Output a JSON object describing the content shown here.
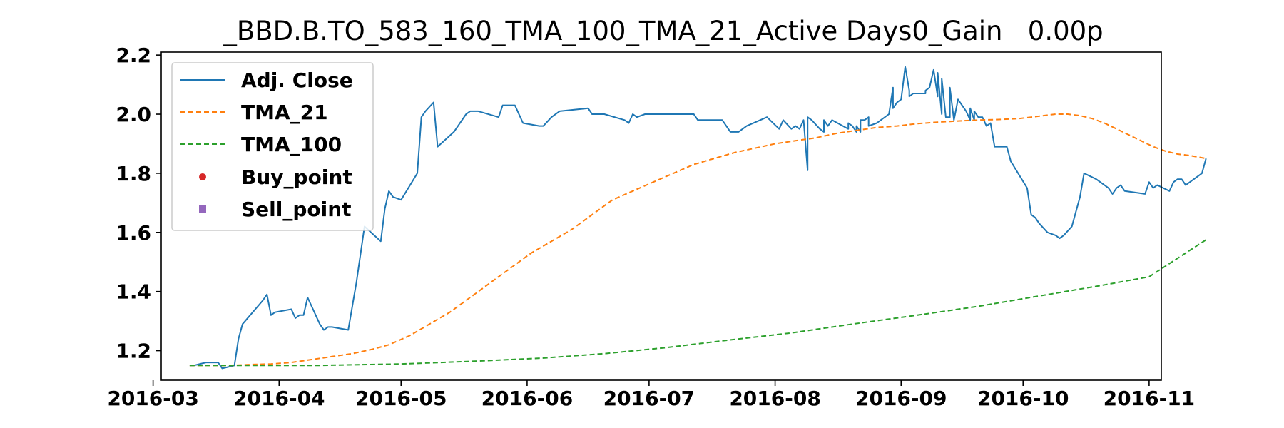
{
  "chart_data": {
    "type": "line",
    "title": "_BBD.B.TO_583_160_TMA_100_TMA_21_Active Days0_Gain   0.00p",
    "xlabel": "",
    "ylabel": "",
    "xlim": [
      "2016-03-03",
      "2016-11-04"
    ],
    "ylim": [
      1.1,
      2.21
    ],
    "grid": false,
    "legend_position": "upper-left",
    "x_ticks": [
      "2016-03",
      "2016-04",
      "2016-05",
      "2016-06",
      "2016-07",
      "2016-08",
      "2016-09",
      "2016-10",
      "2016-11"
    ],
    "y_ticks": [
      "1.2",
      "1.4",
      "1.6",
      "1.8",
      "2.0",
      "2.2"
    ],
    "series": [
      {
        "name": "Adj. Close",
        "style": "solid",
        "color": "#1f77b4",
        "points": [
          [
            "2016-03-10",
            1.15
          ],
          [
            "2016-03-11",
            1.15
          ],
          [
            "2016-03-14",
            1.16
          ],
          [
            "2016-03-15",
            1.16
          ],
          [
            "2016-03-16",
            1.16
          ],
          [
            "2016-03-17",
            1.16
          ],
          [
            "2016-03-18",
            1.14
          ],
          [
            "2016-03-21",
            1.15
          ],
          [
            "2016-03-22",
            1.24
          ],
          [
            "2016-03-23",
            1.29
          ],
          [
            "2016-03-28",
            1.37
          ],
          [
            "2016-03-29",
            1.39
          ],
          [
            "2016-03-30",
            1.32
          ],
          [
            "2016-03-31",
            1.33
          ],
          [
            "2016-04-04",
            1.34
          ],
          [
            "2016-04-05",
            1.31
          ],
          [
            "2016-04-06",
            1.32
          ],
          [
            "2016-04-07",
            1.32
          ],
          [
            "2016-04-08",
            1.38
          ],
          [
            "2016-04-11",
            1.29
          ],
          [
            "2016-04-12",
            1.27
          ],
          [
            "2016-04-13",
            1.28
          ],
          [
            "2016-04-14",
            1.28
          ],
          [
            "2016-04-18",
            1.27
          ],
          [
            "2016-04-20",
            1.43
          ],
          [
            "2016-04-22",
            1.62
          ],
          [
            "2016-04-26",
            1.57
          ],
          [
            "2016-04-27",
            1.68
          ],
          [
            "2016-04-28",
            1.74
          ],
          [
            "2016-04-29",
            1.72
          ],
          [
            "2016-05-01",
            1.71
          ],
          [
            "2016-05-05",
            1.8
          ],
          [
            "2016-05-06",
            1.99
          ],
          [
            "2016-05-07",
            2.01
          ],
          [
            "2016-05-09",
            2.04
          ],
          [
            "2016-05-10",
            1.89
          ],
          [
            "2016-05-14",
            1.94
          ],
          [
            "2016-05-17",
            2.0
          ],
          [
            "2016-05-18",
            2.01
          ],
          [
            "2016-05-20",
            2.01
          ],
          [
            "2016-05-25",
            1.99
          ],
          [
            "2016-05-26",
            2.03
          ],
          [
            "2016-05-29",
            2.03
          ],
          [
            "2016-05-31",
            1.97
          ],
          [
            "2016-06-04",
            1.96
          ],
          [
            "2016-06-05",
            1.96
          ],
          [
            "2016-06-07",
            1.99
          ],
          [
            "2016-06-09",
            2.01
          ],
          [
            "2016-06-16",
            2.02
          ],
          [
            "2016-06-17",
            2.0
          ],
          [
            "2016-06-20",
            2.0
          ],
          [
            "2016-06-25",
            1.98
          ],
          [
            "2016-06-26",
            1.97
          ],
          [
            "2016-06-27",
            2.0
          ],
          [
            "2016-06-28",
            1.99
          ],
          [
            "2016-06-30",
            2.0
          ],
          [
            "2016-07-12",
            2.0
          ],
          [
            "2016-07-13",
            1.98
          ],
          [
            "2016-07-19",
            1.98
          ],
          [
            "2016-07-21",
            1.94
          ],
          [
            "2016-07-23",
            1.94
          ],
          [
            "2016-07-25",
            1.96
          ],
          [
            "2016-07-30",
            1.99
          ],
          [
            "2016-08-02",
            1.95
          ],
          [
            "2016-08-03",
            1.98
          ],
          [
            "2016-08-05",
            1.95
          ],
          [
            "2016-08-09",
            1.81
          ],
          [
            "2016-08-12",
            1.95
          ],
          [
            "2016-08-13",
            1.94
          ],
          [
            "2016-08-19",
            1.95
          ],
          [
            "2016-08-21",
            1.94
          ],
          [
            "2016-08-22",
            1.94
          ],
          [
            "2016-08-23",
            1.98
          ],
          [
            "2016-08-24",
            1.99
          ],
          [
            "2016-08-30",
            2.09
          ],
          [
            "2016-09-02",
            2.16
          ],
          [
            "2016-09-03",
            2.08
          ],
          [
            "2016-09-04",
            2.07
          ],
          [
            "2016-09-07",
            2.07
          ],
          [
            "2016-09-10",
            2.06
          ],
          [
            "2016-09-11",
            2.0
          ],
          [
            "2016-09-12",
            1.99
          ],
          [
            "2016-09-13",
            1.99
          ],
          [
            "2016-09-14",
            1.98
          ],
          [
            "2016-09-18",
            1.98
          ],
          [
            "2016-09-19",
            1.98
          ],
          [
            "2016-09-20",
            1.99
          ],
          [
            "2016-09-21",
            1.99
          ],
          [
            "2016-09-22",
            1.96
          ],
          [
            "2016-08-06",
            1.96
          ],
          [
            "2016-08-07",
            1.95
          ],
          [
            "2016-08-08",
            1.98
          ],
          [
            "2016-08-09",
            1.99
          ],
          [
            "2016-08-10",
            1.98
          ],
          [
            "2016-08-13",
            1.98
          ],
          [
            "2016-08-14",
            1.96
          ],
          [
            "2016-08-15",
            1.98
          ],
          [
            "2016-08-19",
            1.97
          ],
          [
            "2016-08-20",
            1.96
          ],
          [
            "2016-08-21",
            1.96
          ],
          [
            "2016-08-22",
            1.98
          ],
          [
            "2016-08-24",
            1.96
          ],
          [
            "2016-08-26",
            1.97
          ],
          [
            "2016-08-27",
            1.98
          ],
          [
            "2016-08-29",
            2.0
          ],
          [
            "2016-08-30",
            2.02
          ],
          [
            "2016-08-31",
            2.04
          ],
          [
            "2016-09-01",
            2.05
          ],
          [
            "2016-09-03",
            2.06
          ],
          [
            "2016-09-06",
            2.07
          ],
          [
            "2016-09-07",
            2.08
          ],
          [
            "2016-09-08",
            2.09
          ],
          [
            "2016-09-09",
            2.15
          ],
          [
            "2016-09-10",
            2.14
          ],
          [
            "2016-09-11",
            2.12
          ],
          [
            "2016-09-13",
            2.09
          ],
          [
            "2016-09-15",
            2.05
          ],
          [
            "2016-09-17",
            2.01
          ],
          [
            "2016-09-18",
            2.02
          ],
          [
            "2016-09-19",
            2.01
          ],
          [
            "2016-09-21",
            1.99
          ],
          [
            "2016-09-23",
            1.97
          ],
          [
            "2016-09-24",
            1.89
          ],
          [
            "2016-09-27",
            1.89
          ],
          [
            "2016-09-28",
            1.84
          ],
          [
            "2016-10-02",
            1.75
          ],
          [
            "2016-10-03",
            1.66
          ],
          [
            "2016-10-04",
            1.65
          ],
          [
            "2016-10-05",
            1.63
          ],
          [
            "2016-10-07",
            1.6
          ],
          [
            "2016-10-09",
            1.59
          ],
          [
            "2016-10-10",
            1.58
          ],
          [
            "2016-10-11",
            1.59
          ],
          [
            "2016-10-13",
            1.62
          ],
          [
            "2016-10-14",
            1.67
          ],
          [
            "2016-10-15",
            1.72
          ],
          [
            "2016-10-16",
            1.8
          ],
          [
            "2016-10-19",
            1.78
          ],
          [
            "2016-10-20",
            1.77
          ],
          [
            "2016-10-22",
            1.75
          ],
          [
            "2016-10-23",
            1.73
          ],
          [
            "2016-10-24",
            1.75
          ],
          [
            "2016-10-25",
            1.76
          ],
          [
            "2016-10-26",
            1.74
          ],
          [
            "2016-10-31",
            1.73
          ],
          [
            "2016-11-01",
            1.77
          ],
          [
            "2016-11-02",
            1.75
          ],
          [
            "2016-11-03",
            1.76
          ],
          [
            "2016-11-06",
            1.74
          ],
          [
            "2016-11-07",
            1.77
          ],
          [
            "2016-11-08",
            1.78
          ],
          [
            "2016-11-09",
            1.78
          ],
          [
            "2016-11-10",
            1.76
          ],
          [
            "2016-11-14",
            1.8
          ],
          [
            "2016-11-15",
            1.85
          ]
        ]
      },
      {
        "name": "TMA_21",
        "style": "dashed",
        "color": "#ff7f0e",
        "points": [
          [
            "2016-03-10",
            1.15
          ],
          [
            "2016-03-20",
            1.15
          ],
          [
            "2016-03-25",
            1.153
          ],
          [
            "2016-03-30",
            1.155
          ],
          [
            "2016-04-04",
            1.16
          ],
          [
            "2016-04-09",
            1.17
          ],
          [
            "2016-04-14",
            1.18
          ],
          [
            "2016-04-19",
            1.19
          ],
          [
            "2016-04-24",
            1.205
          ],
          [
            "2016-04-28",
            1.22
          ],
          [
            "2016-05-03",
            1.25
          ],
          [
            "2016-05-08",
            1.29
          ],
          [
            "2016-05-13",
            1.33
          ],
          [
            "2016-05-18",
            1.38
          ],
          [
            "2016-05-23",
            1.43
          ],
          [
            "2016-05-28",
            1.48
          ],
          [
            "2016-06-02",
            1.53
          ],
          [
            "2016-06-07",
            1.57
          ],
          [
            "2016-06-12",
            1.61
          ],
          [
            "2016-06-17",
            1.66
          ],
          [
            "2016-06-22",
            1.71
          ],
          [
            "2016-06-27",
            1.74
          ],
          [
            "2016-07-02",
            1.77
          ],
          [
            "2016-07-07",
            1.8
          ],
          [
            "2016-07-12",
            1.83
          ],
          [
            "2016-07-17",
            1.85
          ],
          [
            "2016-07-22",
            1.87
          ],
          [
            "2016-07-27",
            1.885
          ],
          [
            "2016-08-01",
            1.9
          ],
          [
            "2016-08-06",
            1.91
          ],
          [
            "2016-08-11",
            1.92
          ],
          [
            "2016-08-16",
            1.935
          ],
          [
            "2016-08-21",
            1.945
          ],
          [
            "2016-08-26",
            1.955
          ],
          [
            "2016-08-31",
            1.96
          ],
          [
            "2016-09-05",
            1.968
          ],
          [
            "2016-09-10",
            1.973
          ],
          [
            "2016-09-15",
            1.977
          ],
          [
            "2016-09-20",
            1.98
          ],
          [
            "2016-09-25",
            1.982
          ],
          [
            "2016-09-30",
            1.985
          ],
          [
            "2016-10-03",
            1.99
          ],
          [
            "2016-10-06",
            1.995
          ],
          [
            "2016-10-09",
            2.0
          ],
          [
            "2016-10-12",
            2.0
          ],
          [
            "2016-10-15",
            1.995
          ],
          [
            "2016-10-18",
            1.985
          ],
          [
            "2016-10-21",
            1.97
          ],
          [
            "2016-10-24",
            1.95
          ],
          [
            "2016-10-27",
            1.93
          ],
          [
            "2016-10-30",
            1.91
          ],
          [
            "2016-11-02",
            1.89
          ],
          [
            "2016-11-05",
            1.875
          ],
          [
            "2016-11-08",
            1.865
          ],
          [
            "2016-11-11",
            1.86
          ],
          [
            "2016-11-15",
            1.85
          ]
        ]
      },
      {
        "name": "TMA_100",
        "style": "dashed",
        "color": "#2ca02c",
        "points": [
          [
            "2016-03-10",
            1.15
          ],
          [
            "2016-04-10",
            1.15
          ],
          [
            "2016-05-01",
            1.155
          ],
          [
            "2016-05-20",
            1.165
          ],
          [
            "2016-06-05",
            1.175
          ],
          [
            "2016-06-20",
            1.19
          ],
          [
            "2016-07-05",
            1.21
          ],
          [
            "2016-07-20",
            1.235
          ],
          [
            "2016-08-05",
            1.26
          ],
          [
            "2016-08-20",
            1.29
          ],
          [
            "2016-09-05",
            1.32
          ],
          [
            "2016-09-20",
            1.35
          ],
          [
            "2016-10-05",
            1.385
          ],
          [
            "2016-10-20",
            1.42
          ],
          [
            "2016-11-01",
            1.45
          ],
          [
            "2016-11-15",
            1.575
          ]
        ]
      },
      {
        "name": "Buy_point",
        "style": "marker-circle",
        "color": "#d62728",
        "points": []
      },
      {
        "name": "Sell_point",
        "style": "marker-square",
        "color": "#9467bd",
        "points": []
      }
    ]
  }
}
